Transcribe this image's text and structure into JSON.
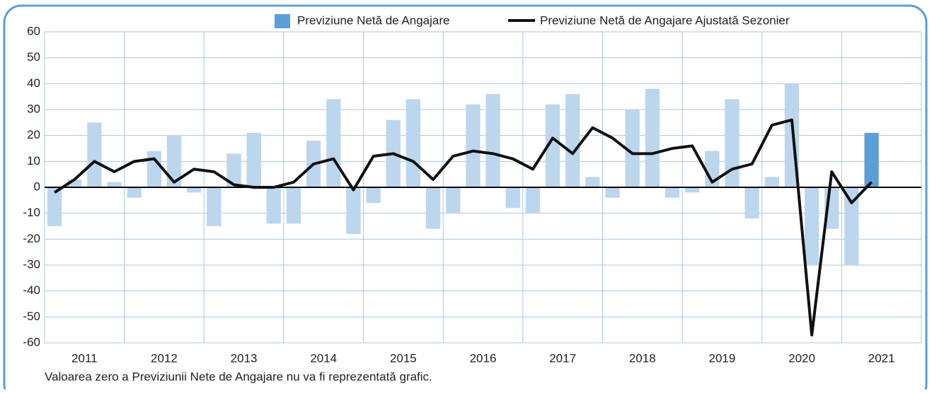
{
  "chart_data": {
    "type": "bar",
    "categories": [
      null,
      "2011",
      null,
      null,
      null,
      "2012",
      null,
      null,
      null,
      "2013",
      null,
      null,
      null,
      "2014",
      null,
      null,
      null,
      "2015",
      null,
      null,
      null,
      "2016",
      null,
      null,
      null,
      "2017",
      null,
      null,
      null,
      "2018",
      null,
      null,
      null,
      "2019",
      null,
      null,
      null,
      "2020",
      null,
      null,
      null,
      "2021"
    ],
    "series": [
      {
        "name": "Previziune Netă de Angajare",
        "type": "bar",
        "color": "#5b9fd8",
        "colors": [
          "#bcd6ee",
          "#bcd6ee",
          "#bcd6ee",
          "#bcd6ee",
          "#bcd6ee",
          "#bcd6ee",
          "#bcd6ee",
          "#bcd6ee",
          "#bcd6ee",
          "#bcd6ee",
          "#bcd6ee",
          "#bcd6ee",
          "#bcd6ee",
          "#bcd6ee",
          "#bcd6ee",
          "#bcd6ee",
          "#bcd6ee",
          "#bcd6ee",
          "#bcd6ee",
          "#bcd6ee",
          "#bcd6ee",
          "#bcd6ee",
          "#bcd6ee",
          "#bcd6ee",
          "#bcd6ee",
          "#bcd6ee",
          "#bcd6ee",
          "#bcd6ee",
          "#bcd6ee",
          "#bcd6ee",
          "#bcd6ee",
          "#bcd6ee",
          "#bcd6ee",
          "#bcd6ee",
          "#bcd6ee",
          "#bcd6ee",
          "#bcd6ee",
          "#bcd6ee",
          "#bcd6ee",
          "#bcd6ee",
          "#bcd6ee",
          "#5b9fd8"
        ],
        "values": [
          -15,
          3,
          25,
          2,
          -4,
          14,
          20,
          -2,
          -15,
          13,
          21,
          -14,
          -14,
          18,
          34,
          -18,
          -6,
          26,
          34,
          -16,
          -10,
          32,
          36,
          -8,
          -10,
          32,
          36,
          4,
          -4,
          30,
          38,
          -4,
          -2,
          14,
          34,
          -12,
          4,
          40,
          -30,
          -16,
          -30,
          21
        ]
      },
      {
        "name": "Previziune Netă de Angajare Ajustată Sezonier",
        "type": "line",
        "color": "#111111",
        "values": [
          -2,
          3,
          10,
          6,
          10,
          11,
          2,
          7,
          6,
          1,
          0,
          0,
          2,
          9,
          11,
          -1,
          12,
          13,
          10,
          3,
          12,
          14,
          13,
          11,
          7,
          19,
          13,
          23,
          19,
          13,
          13,
          15,
          16,
          2,
          7,
          9,
          24,
          26,
          -57,
          6,
          -6,
          2
        ]
      }
    ],
    "ylim": [
      -60,
      60
    ],
    "yticks": [
      -60,
      -50,
      -40,
      -30,
      -20,
      -10,
      0,
      10,
      20,
      30,
      40,
      50,
      60
    ],
    "grid": true,
    "note": "Valoarea zero a Previziunii Nete de Angajare nu va fi reprezentată grafic."
  }
}
